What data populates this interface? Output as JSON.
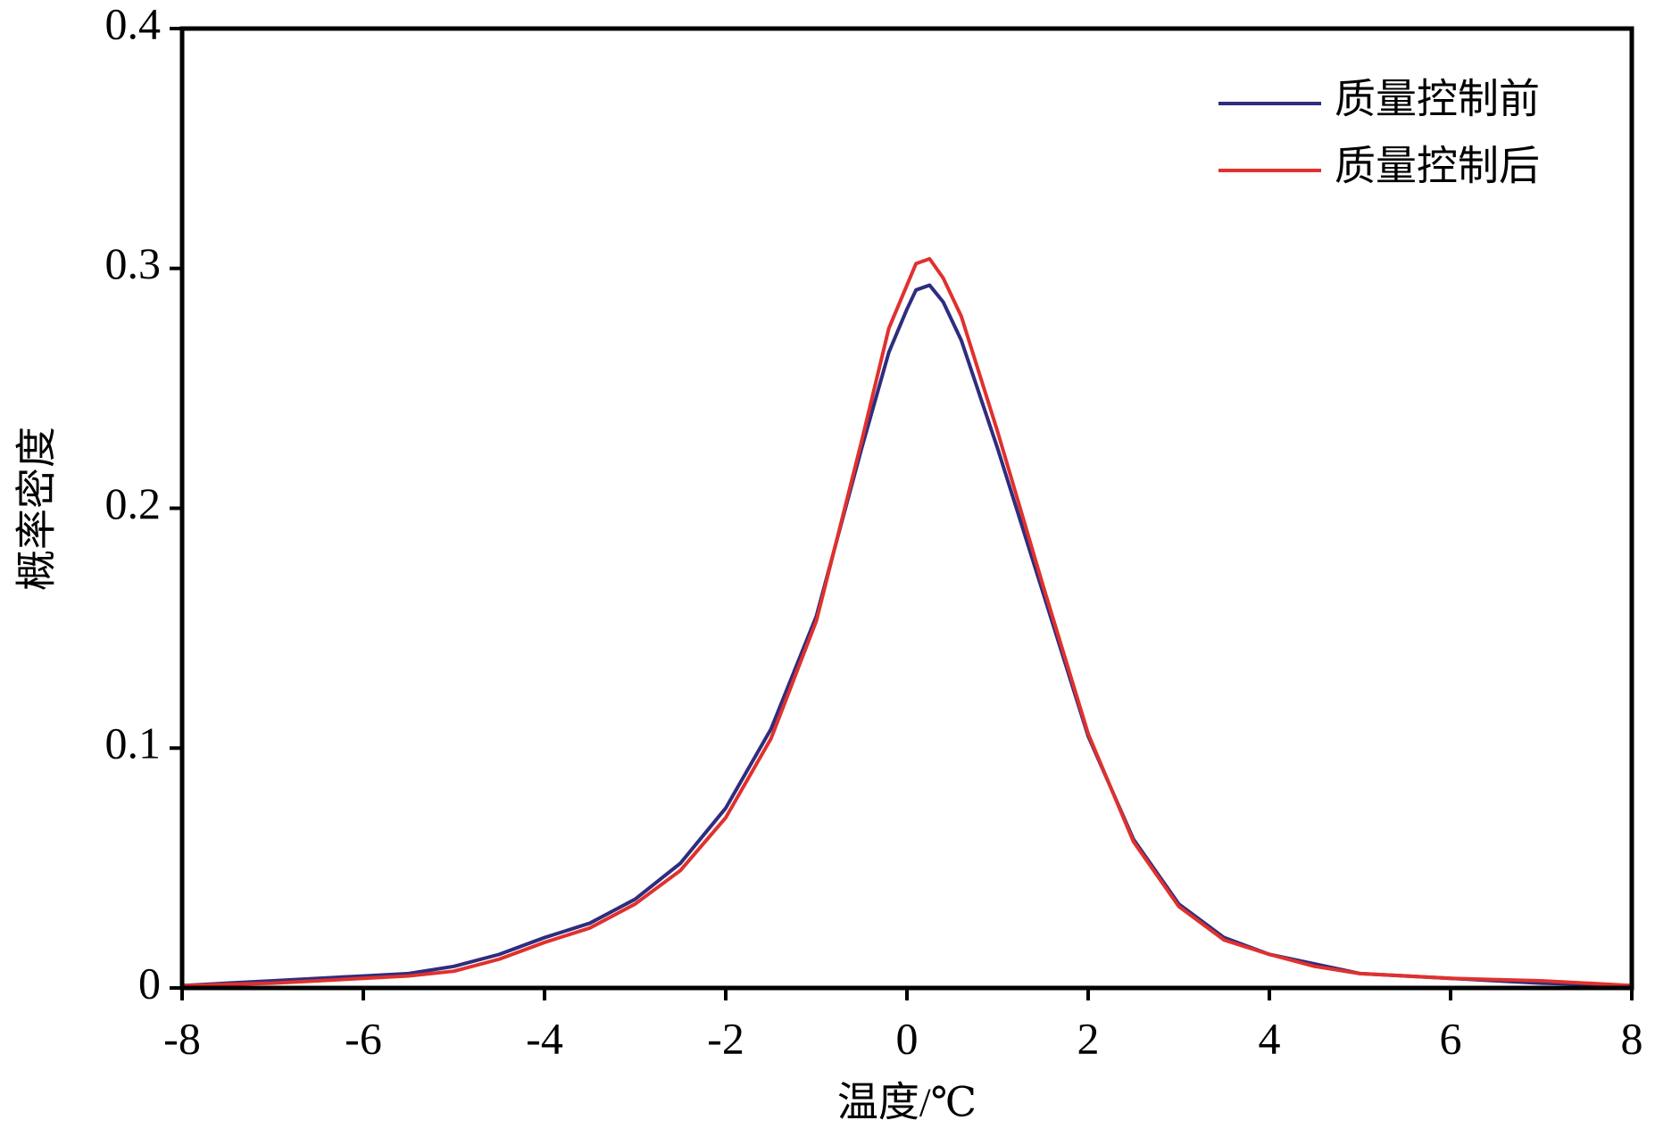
{
  "chart_data": {
    "type": "line",
    "xlabel": "温度/℃",
    "ylabel": "概率密度",
    "xlim": [
      -8,
      8
    ],
    "xticks": [
      -8,
      -6,
      -4,
      -2,
      0,
      2,
      4,
      6,
      8
    ],
    "ylim": [
      0,
      0.4
    ],
    "yticks": [
      0,
      0.1,
      0.2,
      0.3,
      0.4
    ],
    "legend": "upper right",
    "x": [
      -8,
      -7,
      -6,
      -5.5,
      -5,
      -4.5,
      -4,
      -3.5,
      -3,
      -2.5,
      -2,
      -1.5,
      -1,
      -0.5,
      -0.2,
      0,
      0.1,
      0.25,
      0.4,
      0.6,
      1,
      1.5,
      2,
      2.5,
      3,
      3.5,
      4,
      4.5,
      5,
      6,
      7,
      8
    ],
    "series": [
      {
        "name": "质量控制前",
        "color": "#2e2d7e",
        "values": [
          0.001,
          0.003,
          0.005,
          0.006,
          0.009,
          0.014,
          0.021,
          0.027,
          0.037,
          0.052,
          0.075,
          0.108,
          0.155,
          0.225,
          0.265,
          0.283,
          0.291,
          0.293,
          0.286,
          0.27,
          0.225,
          0.165,
          0.105,
          0.062,
          0.035,
          0.021,
          0.014,
          0.01,
          0.006,
          0.004,
          0.002,
          0.001
        ]
      },
      {
        "name": "质量控制后",
        "color": "#e0312e",
        "values": [
          0.001,
          0.002,
          0.004,
          0.005,
          0.007,
          0.012,
          0.019,
          0.025,
          0.035,
          0.049,
          0.071,
          0.104,
          0.153,
          0.228,
          0.275,
          0.293,
          0.302,
          0.304,
          0.296,
          0.28,
          0.232,
          0.168,
          0.106,
          0.061,
          0.034,
          0.02,
          0.014,
          0.009,
          0.006,
          0.004,
          0.003,
          0.001
        ]
      }
    ]
  }
}
